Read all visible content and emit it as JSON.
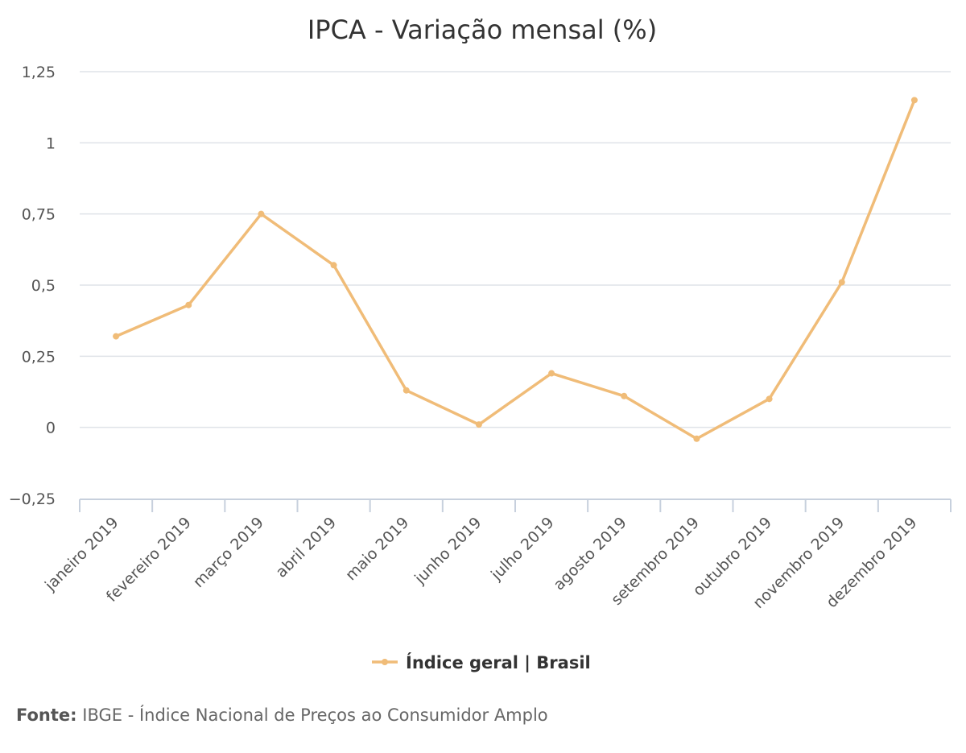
{
  "chart_data": {
    "type": "line",
    "title": "IPCA - Variação mensal (%)",
    "categories": [
      "janeiro 2019",
      "fevereiro 2019",
      "março 2019",
      "abril 2019",
      "maio 2019",
      "junho 2019",
      "julho 2019",
      "agosto 2019",
      "setembro 2019",
      "outubro 2019",
      "novembro 2019",
      "dezembro 2019"
    ],
    "series": [
      {
        "name": "Índice geral | Brasil",
        "color": "#f0bc78",
        "values": [
          0.32,
          0.43,
          0.75,
          0.57,
          0.13,
          0.01,
          0.19,
          0.11,
          -0.04,
          0.1,
          0.51,
          1.15
        ]
      }
    ],
    "yticks": [
      -0.25,
      0,
      0.25,
      0.5,
      0.75,
      1,
      1.25
    ],
    "ytick_labels": [
      "−0,25",
      "0",
      "0,25",
      "0,5",
      "0,75",
      "1",
      "1,25"
    ],
    "ylim": [
      -0.25,
      1.25
    ],
    "grid": true,
    "legend_position": "bottom-center"
  },
  "source": {
    "label": "Fonte:",
    "text": "IBGE - Índice Nacional de Preços ao Consumidor Amplo"
  }
}
